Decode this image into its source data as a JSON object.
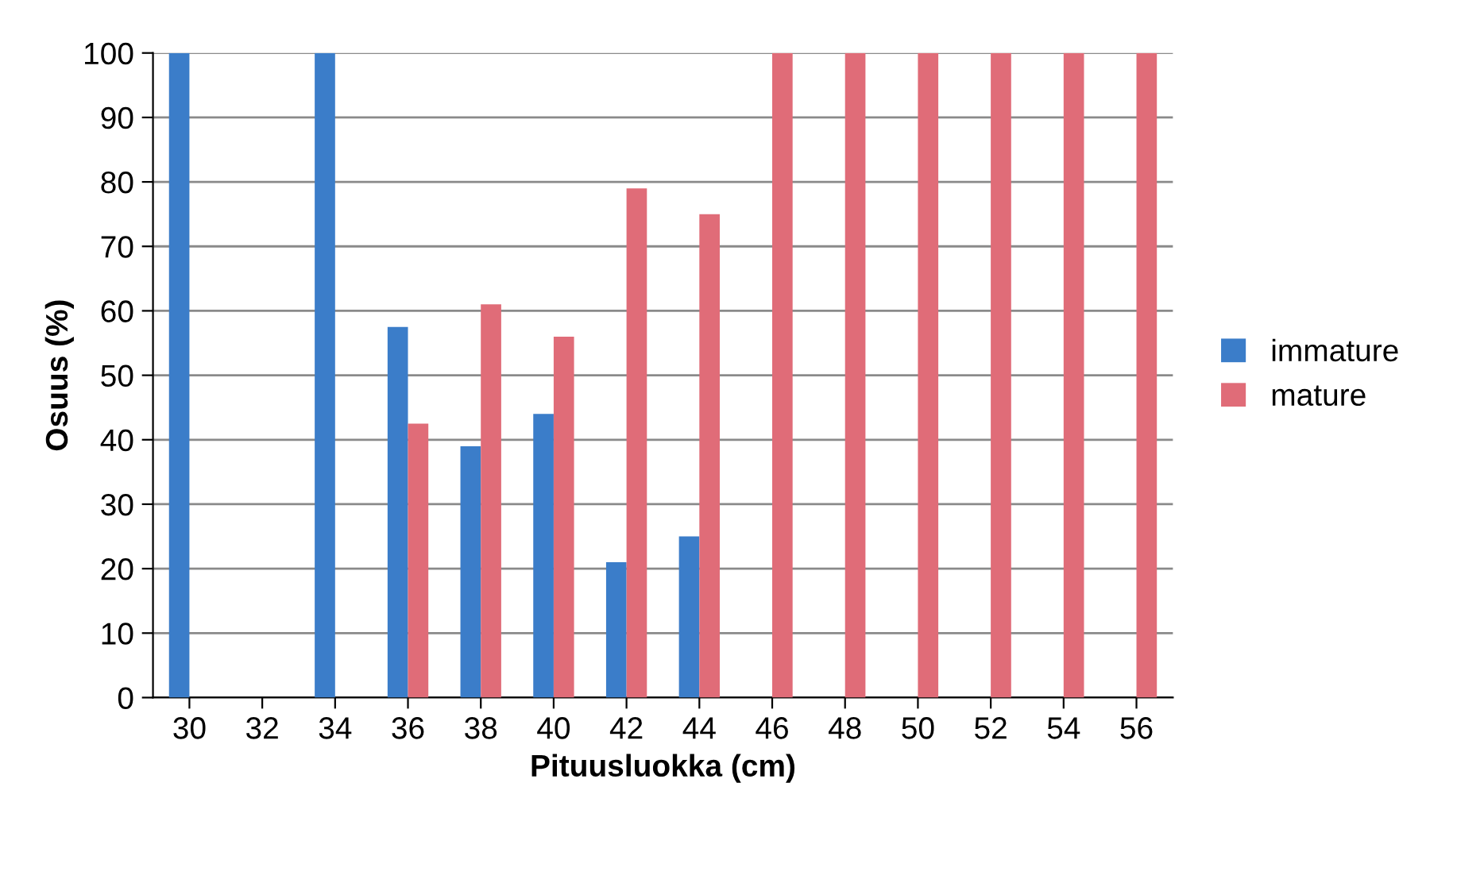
{
  "chart_data": {
    "type": "bar",
    "xlabel": "Pituusluokka (cm)",
    "ylabel": "Osuus (%)",
    "categories": [
      "30",
      "32",
      "34",
      "36",
      "38",
      "40",
      "42",
      "44",
      "46",
      "48",
      "50",
      "52",
      "54",
      "56"
    ],
    "series": [
      {
        "name": "immature",
        "color": "#3b7dc9",
        "values": [
          100,
          null,
          100,
          57.5,
          39,
          44,
          21,
          25,
          null,
          null,
          null,
          null,
          null,
          null
        ]
      },
      {
        "name": "mature",
        "color": "#e06c78",
        "values": [
          null,
          null,
          null,
          42.5,
          61,
          56,
          79,
          75,
          100,
          100,
          100,
          100,
          100,
          100
        ]
      }
    ],
    "ylim": [
      0,
      100
    ],
    "yticks": [
      0,
      10,
      20,
      30,
      40,
      50,
      60,
      70,
      80,
      90,
      100
    ],
    "grid": "y",
    "legend": "right"
  }
}
